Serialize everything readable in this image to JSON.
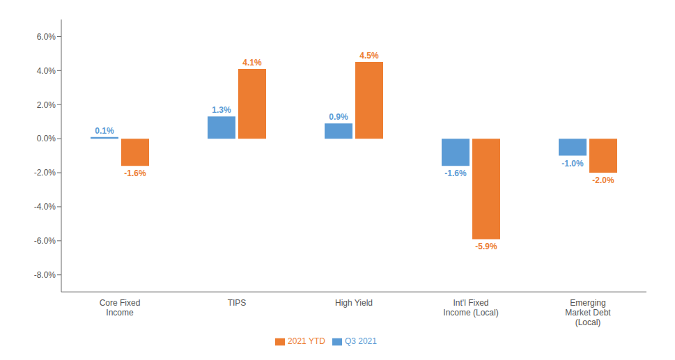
{
  "chart_data": {
    "type": "bar",
    "categories": [
      "Core Fixed\nIncome",
      "TIPS",
      "High Yield",
      "Int'l Fixed\nIncome (Local)",
      "Emerging\nMarket Debt\n(Local)"
    ],
    "series": [
      {
        "name": "Q3 2021",
        "color": "#5B9BD5",
        "values": [
          0.1,
          1.3,
          0.9,
          -1.6,
          -1.0
        ],
        "value_labels": [
          "0.1%",
          "1.3%",
          "0.9%",
          "-1.6%",
          "-1.0%"
        ]
      },
      {
        "name": "2021 YTD",
        "color": "#ED7D31",
        "values": [
          -1.6,
          4.1,
          4.5,
          -5.9,
          -2.0
        ],
        "value_labels": [
          "-1.6%",
          "4.1%",
          "4.5%",
          "-5.9%",
          "-2.0%"
        ]
      }
    ],
    "ylim": [
      -9.0,
      7.0
    ],
    "yticks": [
      {
        "value": -8.0,
        "label": "-8.0%"
      },
      {
        "value": -6.0,
        "label": "-6.0%"
      },
      {
        "value": -4.0,
        "label": "-4.0%"
      },
      {
        "value": -2.0,
        "label": "-2.0%"
      },
      {
        "value": 0.0,
        "label": "0.0%"
      },
      {
        "value": 2.0,
        "label": "2.0%"
      },
      {
        "value": 4.0,
        "label": "4.0%"
      },
      {
        "value": 6.0,
        "label": "6.0%"
      }
    ],
    "grid": false,
    "legend": "bottom",
    "data_labels": true
  }
}
